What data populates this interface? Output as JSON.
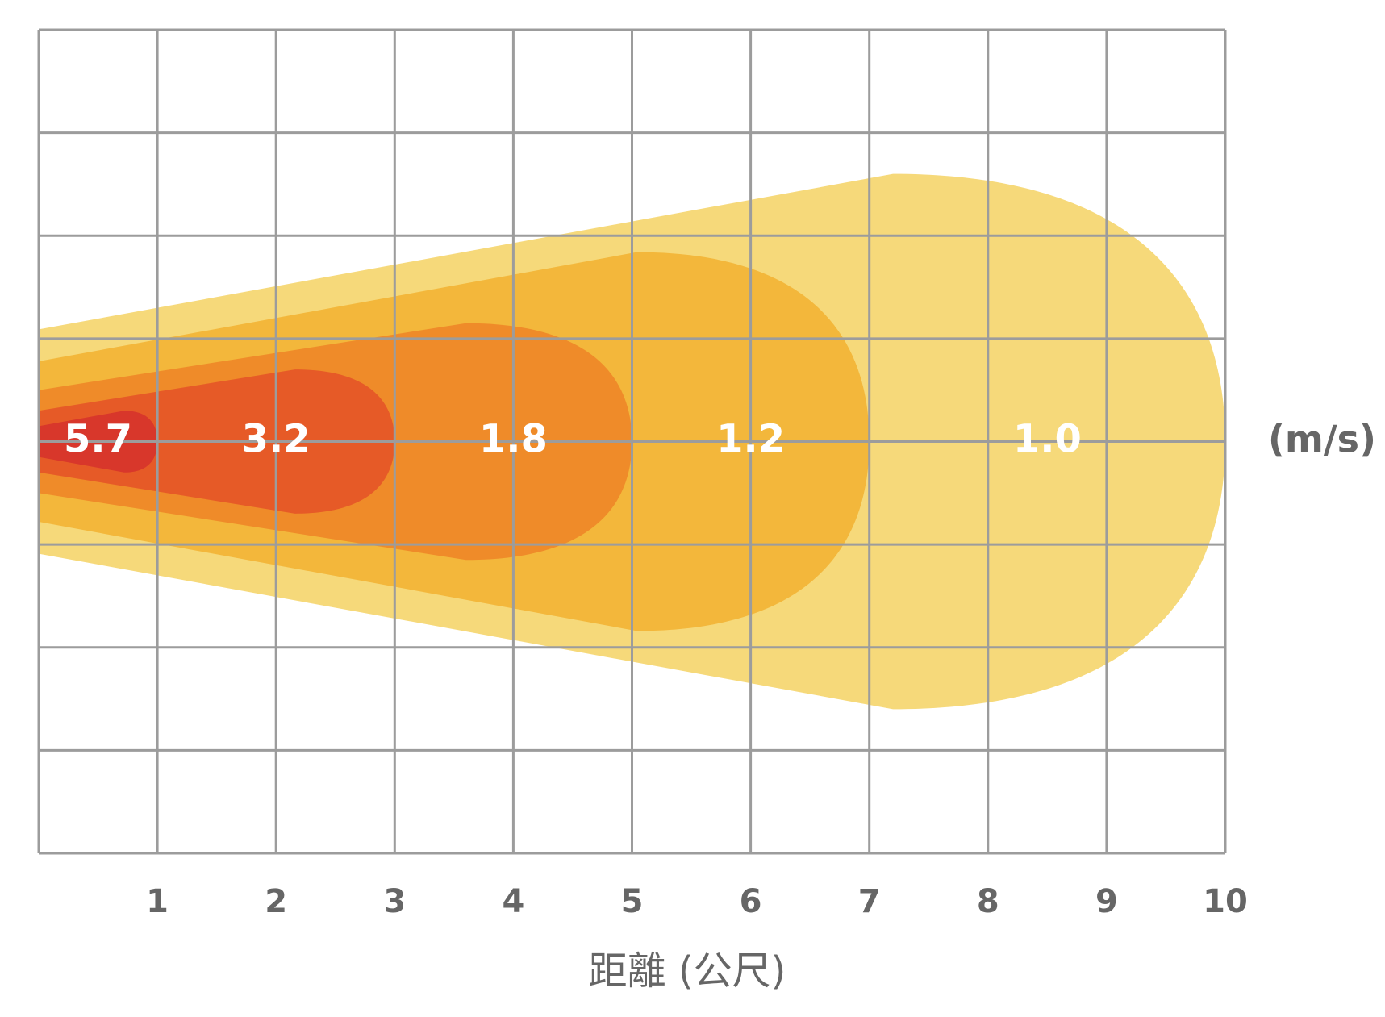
{
  "chart_data": {
    "type": "throw",
    "x_label": "距離 (公尺)",
    "unit_label": "(m/s)",
    "x": [
      1,
      3,
      5,
      7,
      10
    ],
    "values": [
      5.7,
      3.2,
      1.8,
      1.2,
      1
    ],
    "value_labels": [
      "5.7",
      "3.2",
      "1.8",
      "1.2",
      "1.0"
    ],
    "half_width": [
      0.3,
      0.7,
      1.15,
      1.84,
      2.6
    ],
    "start_half_width": [
      0.15,
      0.3,
      0.5,
      0.78,
      1.09
    ],
    "colors": [
      "#d8372b",
      "#e65a27",
      "#ef8b29",
      "#f3b73b",
      "#f6d97a"
    ],
    "xlim": [
      0,
      10
    ],
    "xticks": [
      1,
      2,
      3,
      4,
      5,
      6,
      7,
      8,
      9,
      10
    ],
    "ylim": [
      -4,
      4
    ],
    "yticks": [
      -4,
      -3,
      -2,
      -1,
      0,
      1,
      2,
      3,
      4
    ],
    "grid": true
  }
}
